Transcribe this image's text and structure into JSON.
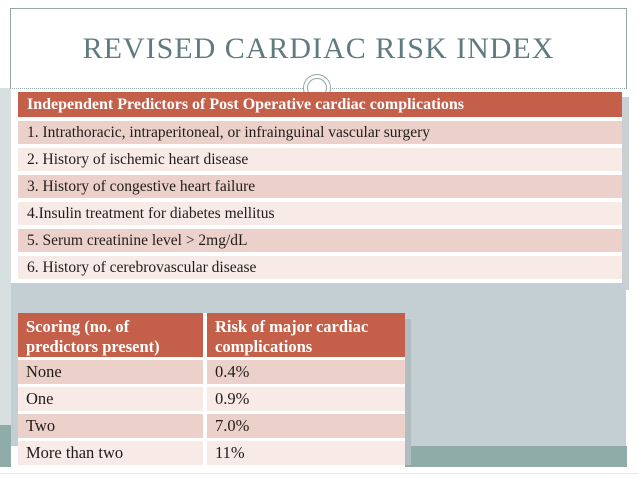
{
  "slide": {
    "title": "REVISED CARDIAC RISK INDEX"
  },
  "predictors_table": {
    "header": "Independent Predictors of Post Operative cardiac complications",
    "rows": [
      "1. Intrathoracic, intraperitoneal, or infrainguinal vascular surgery",
      "2. History of ischemic heart disease",
      "3. History of congestive heart failure",
      "4.Insulin treatment for diabetes mellitus",
      "5. Serum creatinine level > 2mg/dL",
      "6. History of cerebrovascular disease"
    ]
  },
  "scoring_table": {
    "headers": {
      "score": "Scoring (no. of predictors present)",
      "risk": "Risk of  major cardiac complications"
    },
    "rows": [
      {
        "score": "None",
        "risk": "0.4%"
      },
      {
        "score": "One",
        "risk": "0.9%"
      },
      {
        "score": "Two",
        "risk": "7.0%"
      },
      {
        "score": "More than two",
        "risk": "11%"
      }
    ]
  },
  "colors": {
    "header_red": "#C4604A",
    "row_pink_dark": "#ECD1CB",
    "row_pink_light": "#F8EAE6",
    "panel_gray": "#C4CFD4",
    "sage_green": "#8FACA8",
    "left_strip_gray": "#D7DFE1",
    "title_teal": "#5F7B80",
    "frame_line": "#93A7A6"
  }
}
